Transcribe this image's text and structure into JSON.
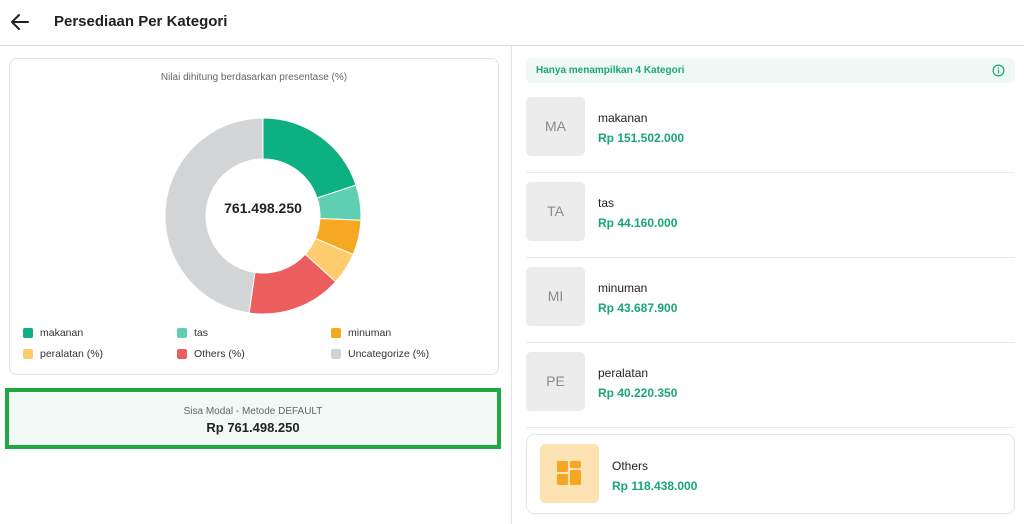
{
  "header": {
    "title": "Persediaan Per Kategori",
    "back_icon": "arrow-left-icon"
  },
  "chart_card": {
    "note": "Nilai dihitung berdasarkan presentase (%)",
    "center_value": "761.498.250"
  },
  "chart_data": {
    "type": "pie",
    "categories": [
      "makanan",
      "tas",
      "minuman",
      "peralatan (%)",
      "Others (%)",
      "Uncategorize (%)"
    ],
    "values": [
      151502000,
      44160000,
      43687900,
      40220350,
      118438000,
      363490000
    ],
    "colors": [
      "#0db081",
      "#5ecfb0",
      "#f6a823",
      "#fdcc6c",
      "#ec5e5e",
      "#d3d4d6"
    ],
    "title": "Nilai dihitung berdasarkan presentase (%)",
    "legend_position": "bottom"
  },
  "legend": [
    {
      "label": "makanan",
      "color": "#0db081"
    },
    {
      "label": "tas",
      "color": "#5ecfb0"
    },
    {
      "label": "minuman",
      "color": "#f6a823"
    },
    {
      "label": "peralatan (%)",
      "color": "#fdcc6c"
    },
    {
      "label": "Others (%)",
      "color": "#ec5e5e"
    },
    {
      "label": "Uncategorize (%)",
      "color": "#d3d4d6"
    }
  ],
  "modal": {
    "label": "Sisa Modal - Metode DEFAULT",
    "value": "Rp 761.498.250"
  },
  "banner": {
    "text": "Hanya menampilkan 4 Kategori",
    "icon": "info-icon"
  },
  "categories": [
    {
      "initials": "MA",
      "name": "makanan",
      "amount": "Rp 151.502.000"
    },
    {
      "initials": "TA",
      "name": "tas",
      "amount": "Rp 44.160.000"
    },
    {
      "initials": "MI",
      "name": "minuman",
      "amount": "Rp 43.687.900"
    },
    {
      "initials": "PE",
      "name": "peralatan",
      "amount": "Rp 40.220.350"
    }
  ],
  "others": {
    "name": "Others",
    "amount": "Rp 118.438.000",
    "icon": "grid-blocks-icon"
  }
}
